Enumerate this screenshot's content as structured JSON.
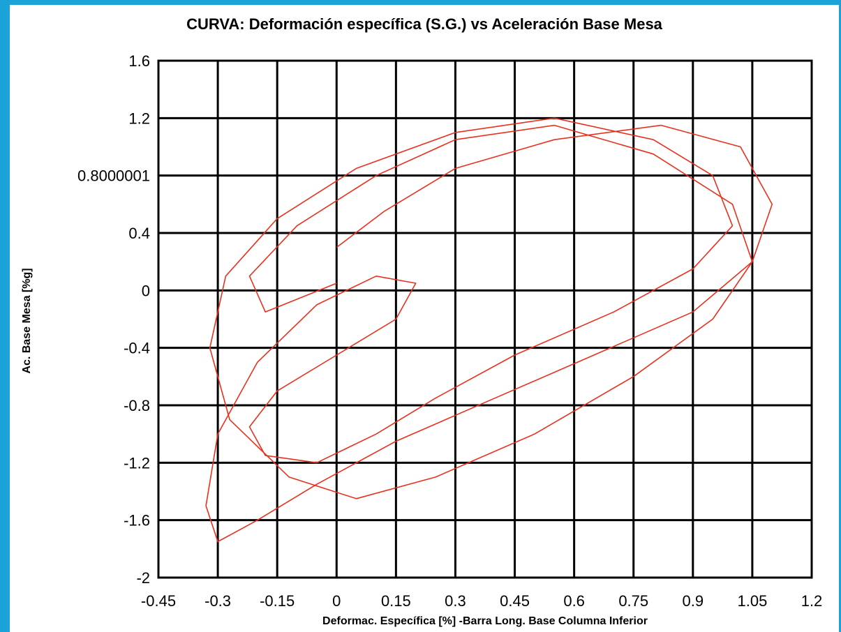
{
  "chart_data": {
    "type": "line",
    "title": "CURVA: Deformación específica (S.G.) vs Aceleración Base Mesa",
    "xlabel": "Deformac. Específica [%] -Barra Long. Base Columna Inferior",
    "ylabel": "Ac. Base Mesa [%g]",
    "xlim": [
      -0.45,
      1.2
    ],
    "ylim": [
      -2,
      1.6
    ],
    "x_ticks": [
      "-0.45",
      "-0.3",
      "-0.15",
      "0",
      "0.15",
      "0.3",
      "0.45",
      "0.6",
      "0.75",
      "0.9",
      "1.05",
      "1.2"
    ],
    "y_ticks": [
      "1.6",
      "1.2",
      "0.8000001",
      "0.4",
      "0",
      "-0.4",
      "-0.8",
      "-1.2",
      "-1.6",
      "-2"
    ],
    "grid": true,
    "series_color": "#e8301c",
    "series": [
      {
        "x": [
          0.0,
          0.12,
          0.3,
          0.55,
          0.82,
          1.02,
          1.1,
          1.05,
          0.9,
          0.65,
          0.4,
          0.15,
          -0.05,
          -0.2,
          -0.3,
          -0.33,
          -0.3,
          -0.2,
          -0.05,
          0.1,
          0.2,
          0.15,
          0.0,
          -0.15,
          -0.22,
          -0.18,
          -0.05,
          0.1,
          0.25,
          0.45,
          0.7,
          0.9,
          1.0,
          0.95,
          0.8,
          0.55,
          0.3,
          0.05,
          -0.15,
          -0.28,
          -0.32,
          -0.27,
          -0.12,
          0.05,
          0.25,
          0.5,
          0.75,
          0.95,
          1.05,
          1.0,
          0.8,
          0.55,
          0.3,
          0.1,
          -0.1,
          -0.22,
          -0.18,
          0.0
        ],
        "y": [
          0.3,
          0.55,
          0.85,
          1.05,
          1.15,
          1.0,
          0.6,
          0.2,
          -0.15,
          -0.45,
          -0.75,
          -1.05,
          -1.35,
          -1.6,
          -1.75,
          -1.5,
          -1.0,
          -0.5,
          -0.1,
          0.1,
          0.05,
          -0.2,
          -0.45,
          -0.7,
          -0.95,
          -1.15,
          -1.2,
          -1.0,
          -0.75,
          -0.45,
          -0.15,
          0.15,
          0.45,
          0.8,
          1.05,
          1.2,
          1.1,
          0.85,
          0.5,
          0.1,
          -0.4,
          -0.9,
          -1.3,
          -1.45,
          -1.3,
          -1.0,
          -0.6,
          -0.2,
          0.2,
          0.6,
          0.95,
          1.15,
          1.05,
          0.8,
          0.45,
          0.1,
          -0.15,
          0.05
        ]
      }
    ]
  }
}
